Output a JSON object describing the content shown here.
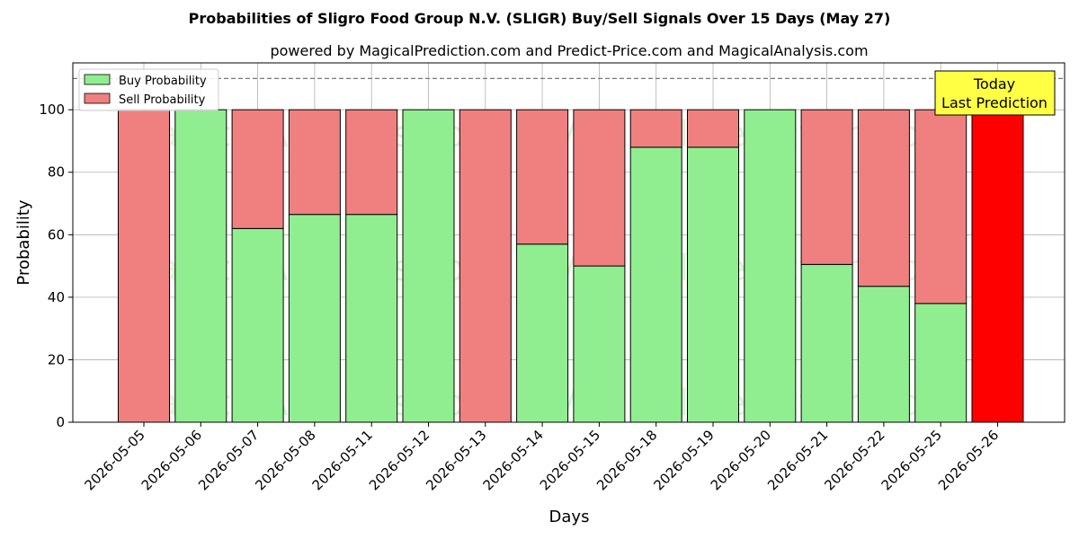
{
  "chart_data": {
    "type": "bar",
    "stacked": true,
    "title": "Probabilities of Sligro Food Group N.V. (SLIGR) Buy/Sell Signals Over 15 Days (May 27)",
    "subtitle": "powered by MagicalPrediction.com and Predict-Price.com and MagicalAnalysis.com",
    "xlabel": "Days",
    "ylabel": "Probability",
    "ylim": [
      0,
      115
    ],
    "yticks": [
      0,
      20,
      40,
      60,
      80,
      100
    ],
    "reference_line": 110,
    "grid": true,
    "legend_position": "top-left",
    "categories": [
      "2026-05-05",
      "2026-05-06",
      "2026-05-07",
      "2026-05-08",
      "2026-05-11",
      "2026-05-12",
      "2026-05-13",
      "2026-05-14",
      "2026-05-15",
      "2026-05-18",
      "2026-05-19",
      "2026-05-20",
      "2026-05-21",
      "2026-05-22",
      "2026-05-25",
      "2026-05-26"
    ],
    "series": [
      {
        "name": "Buy Probability",
        "color": "#90ee90",
        "values": [
          0,
          100,
          62,
          66.5,
          66.5,
          100,
          0,
          57,
          50,
          88,
          88,
          100,
          50.5,
          43.5,
          38,
          0
        ]
      },
      {
        "name": "Sell Probability",
        "color": "#f08080",
        "values": [
          100,
          0,
          38,
          33.5,
          33.5,
          0,
          100,
          43,
          50,
          12,
          12,
          0,
          49.5,
          56.5,
          62,
          100
        ]
      }
    ],
    "highlight": {
      "category": "2026-05-26",
      "color": "#ff0000"
    },
    "annotation": {
      "line1": "Today",
      "line2": "Last Prediction",
      "background": "#ffff44"
    },
    "watermarks": [
      "MagicalAnalysis.com",
      "MagicalPrediction.com"
    ]
  }
}
